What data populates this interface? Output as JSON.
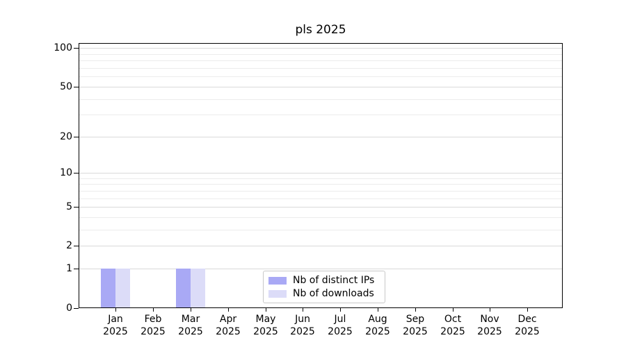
{
  "chart_data": {
    "type": "bar",
    "title": "pls 2025",
    "categories": [
      "Jan",
      "Feb",
      "Mar",
      "Apr",
      "May",
      "Jun",
      "Jul",
      "Aug",
      "Sep",
      "Oct",
      "Nov",
      "Dec"
    ],
    "year_label": "2025",
    "series": [
      {
        "name": "Nb of distinct IPs",
        "color": "#a9a9f5",
        "values": [
          1,
          0,
          1,
          0,
          0,
          0,
          0,
          0,
          0,
          0,
          0,
          0
        ]
      },
      {
        "name": "Nb of downloads",
        "color": "#dcdcf8",
        "values": [
          1,
          0,
          1,
          0,
          0,
          0,
          0,
          0,
          0,
          0,
          0,
          0
        ]
      }
    ],
    "xlabel": "",
    "ylabel": "",
    "yscale": "log1p",
    "ylim": [
      0,
      110
    ],
    "y_major_ticks": [
      0,
      1,
      2,
      5,
      10,
      20,
      50,
      100
    ],
    "y_minor_ticks": [
      3,
      4,
      6,
      7,
      8,
      9,
      30,
      40,
      60,
      70,
      80,
      90
    ],
    "grid": "horizontal-on",
    "legend_position": "lower-center-inside",
    "axis_color": "#000000",
    "grid_major_color": "#d9d9d9",
    "grid_minor_color": "#ececec",
    "background_color": "#ffffff"
  }
}
